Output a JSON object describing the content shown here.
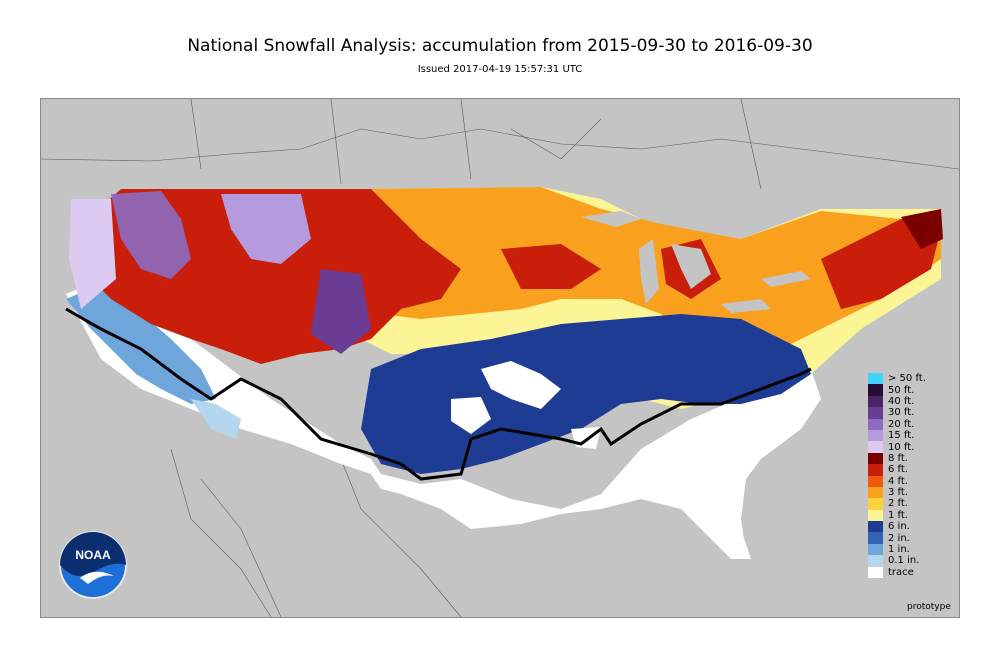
{
  "header": {
    "title": "National Snowfall Analysis: accumulation from 2015-09-30 to 2016-09-30",
    "issued": "Issued 2017-04-19 15:57:31 UTC"
  },
  "legend": {
    "items": [
      {
        "label": "> 50 ft.",
        "color": "#3fd3ff"
      },
      {
        "label": "50 ft.",
        "color": "#240c33"
      },
      {
        "label": "40 ft.",
        "color": "#4a2466"
      },
      {
        "label": "30 ft.",
        "color": "#6b3c94"
      },
      {
        "label": "20 ft.",
        "color": "#8c6cc2"
      },
      {
        "label": "15 ft.",
        "color": "#b59ade"
      },
      {
        "label": "10 ft.",
        "color": "#dccaf0"
      },
      {
        "label": "8 ft.",
        "color": "#7a0000"
      },
      {
        "label": "6 ft.",
        "color": "#c81e0a"
      },
      {
        "label": "4 ft.",
        "color": "#f05a0a"
      },
      {
        "label": "3 ft.",
        "color": "#f9a01e"
      },
      {
        "label": "2 ft.",
        "color": "#fbd23c"
      },
      {
        "label": "1 ft.",
        "color": "#fcf596"
      },
      {
        "label": "6 in.",
        "color": "#1e3c94"
      },
      {
        "label": "2 in.",
        "color": "#2e64b0"
      },
      {
        "label": "1 in.",
        "color": "#6ea6dc"
      },
      {
        "label": "0.1 in.",
        "color": "#b4d6ee"
      },
      {
        "label": "trace",
        "color": "#ffffff"
      }
    ]
  },
  "footer": {
    "prototype_label": "prototype"
  },
  "logo": {
    "text": "NOAA",
    "icon": "noaa-logo"
  },
  "map": {
    "background_color": "#c4c4c4",
    "snow_line_color": "#000000"
  }
}
